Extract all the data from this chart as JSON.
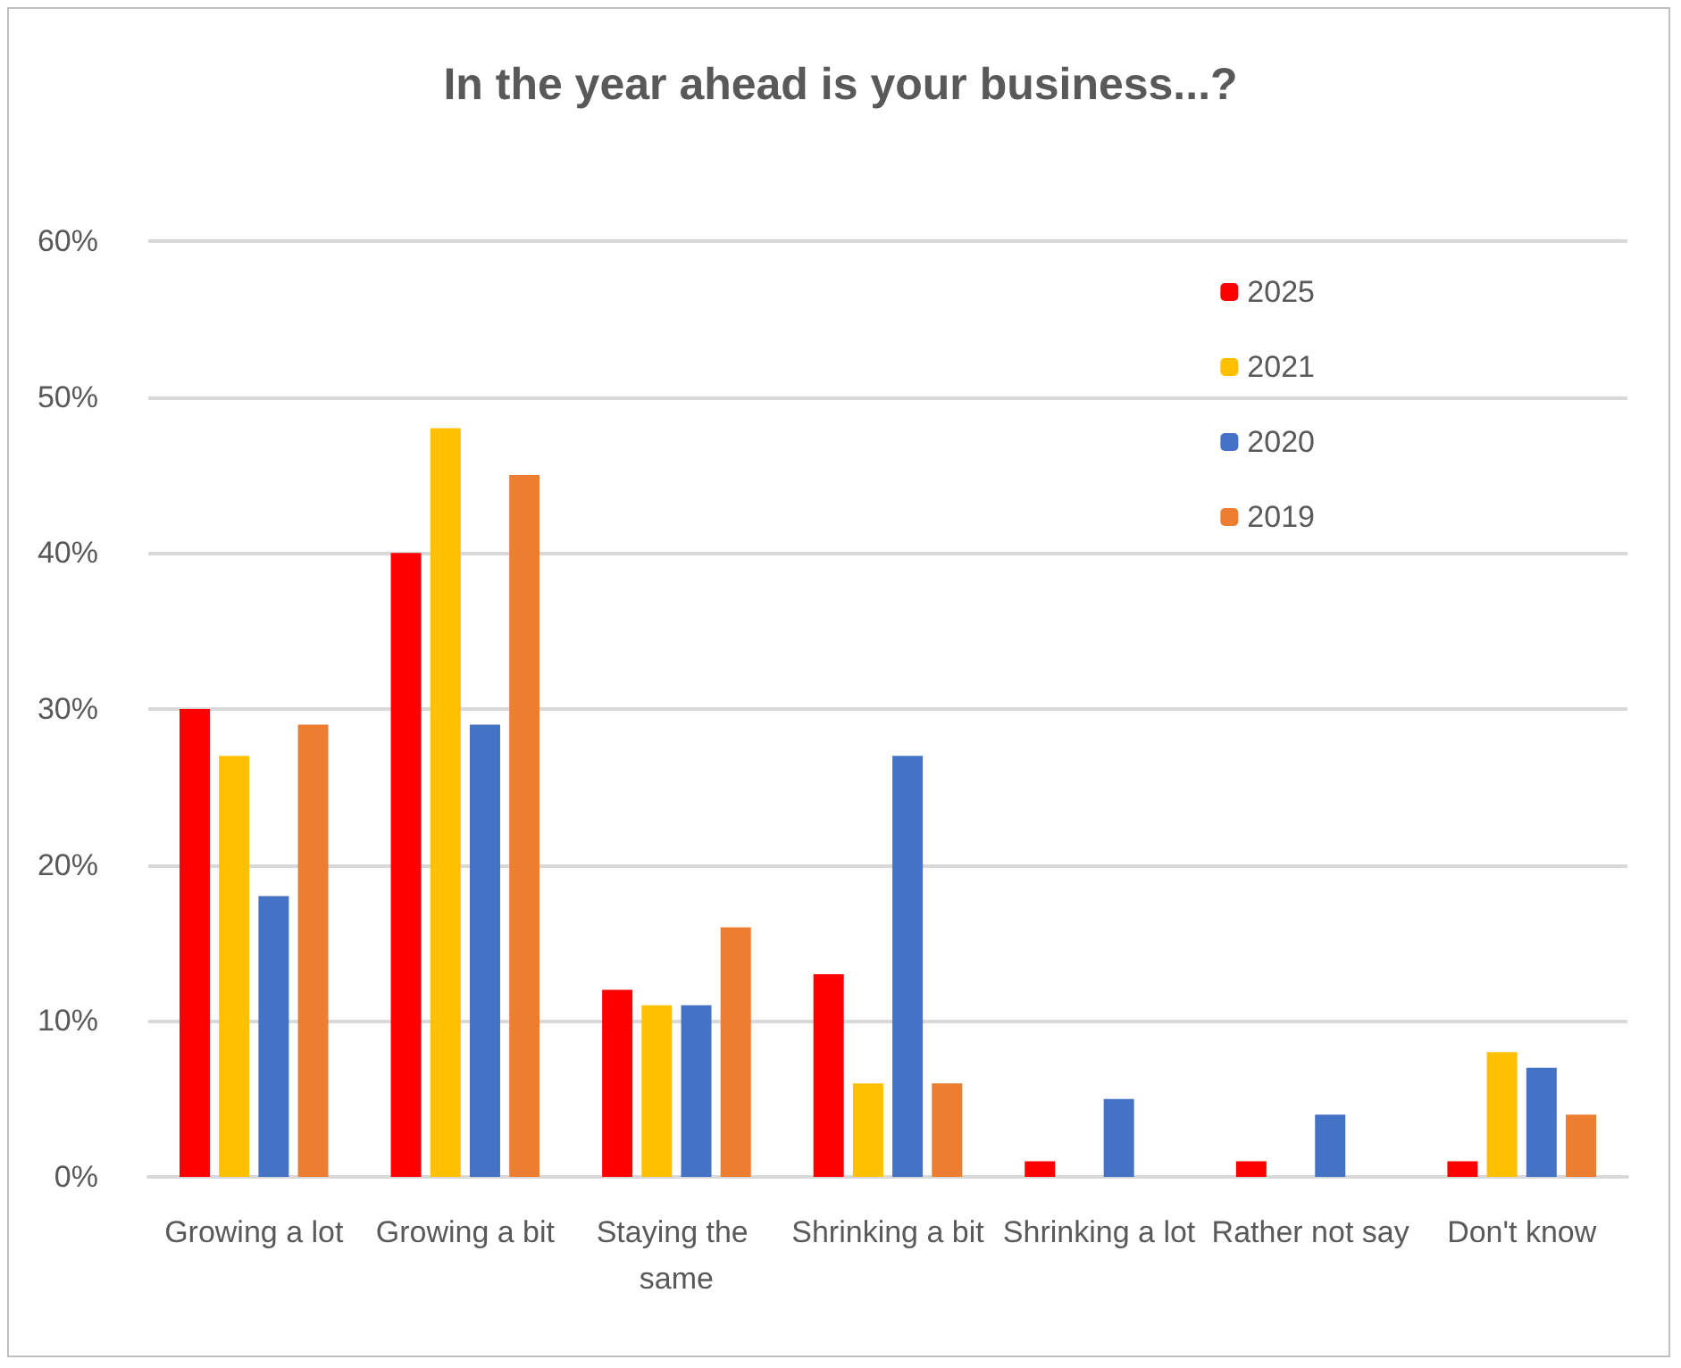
{
  "chart_data": {
    "type": "bar",
    "title": "In the year ahead is your business...?",
    "categories": [
      "Growing a lot",
      "Growing a bit",
      "Staying the same",
      "Shrinking a bit",
      "Shrinking a lot",
      "Rather not say",
      "Don't know"
    ],
    "series": [
      {
        "name": "2025",
        "color": "#ff0000",
        "values": [
          30,
          40,
          12,
          13,
          1,
          1,
          1
        ]
      },
      {
        "name": "2021",
        "color": "#ffc000",
        "values": [
          27,
          48,
          11,
          6,
          null,
          null,
          8
        ]
      },
      {
        "name": "2020",
        "color": "#4472c4",
        "values": [
          18,
          29,
          11,
          27,
          5,
          4,
          7
        ]
      },
      {
        "name": "2019",
        "color": "#ed7d31",
        "values": [
          29,
          45,
          16,
          6,
          null,
          null,
          4
        ]
      }
    ],
    "ylim": [
      0,
      60
    ],
    "yticks": [
      {
        "value": 0,
        "label": "0%"
      },
      {
        "value": 10,
        "label": "10%"
      },
      {
        "value": 20,
        "label": "20%"
      },
      {
        "value": 30,
        "label": "30%"
      },
      {
        "value": 40,
        "label": "40%"
      },
      {
        "value": 50,
        "label": "50%"
      },
      {
        "value": 60,
        "label": "60%"
      }
    ],
    "grid": "y",
    "legend": "top right"
  }
}
